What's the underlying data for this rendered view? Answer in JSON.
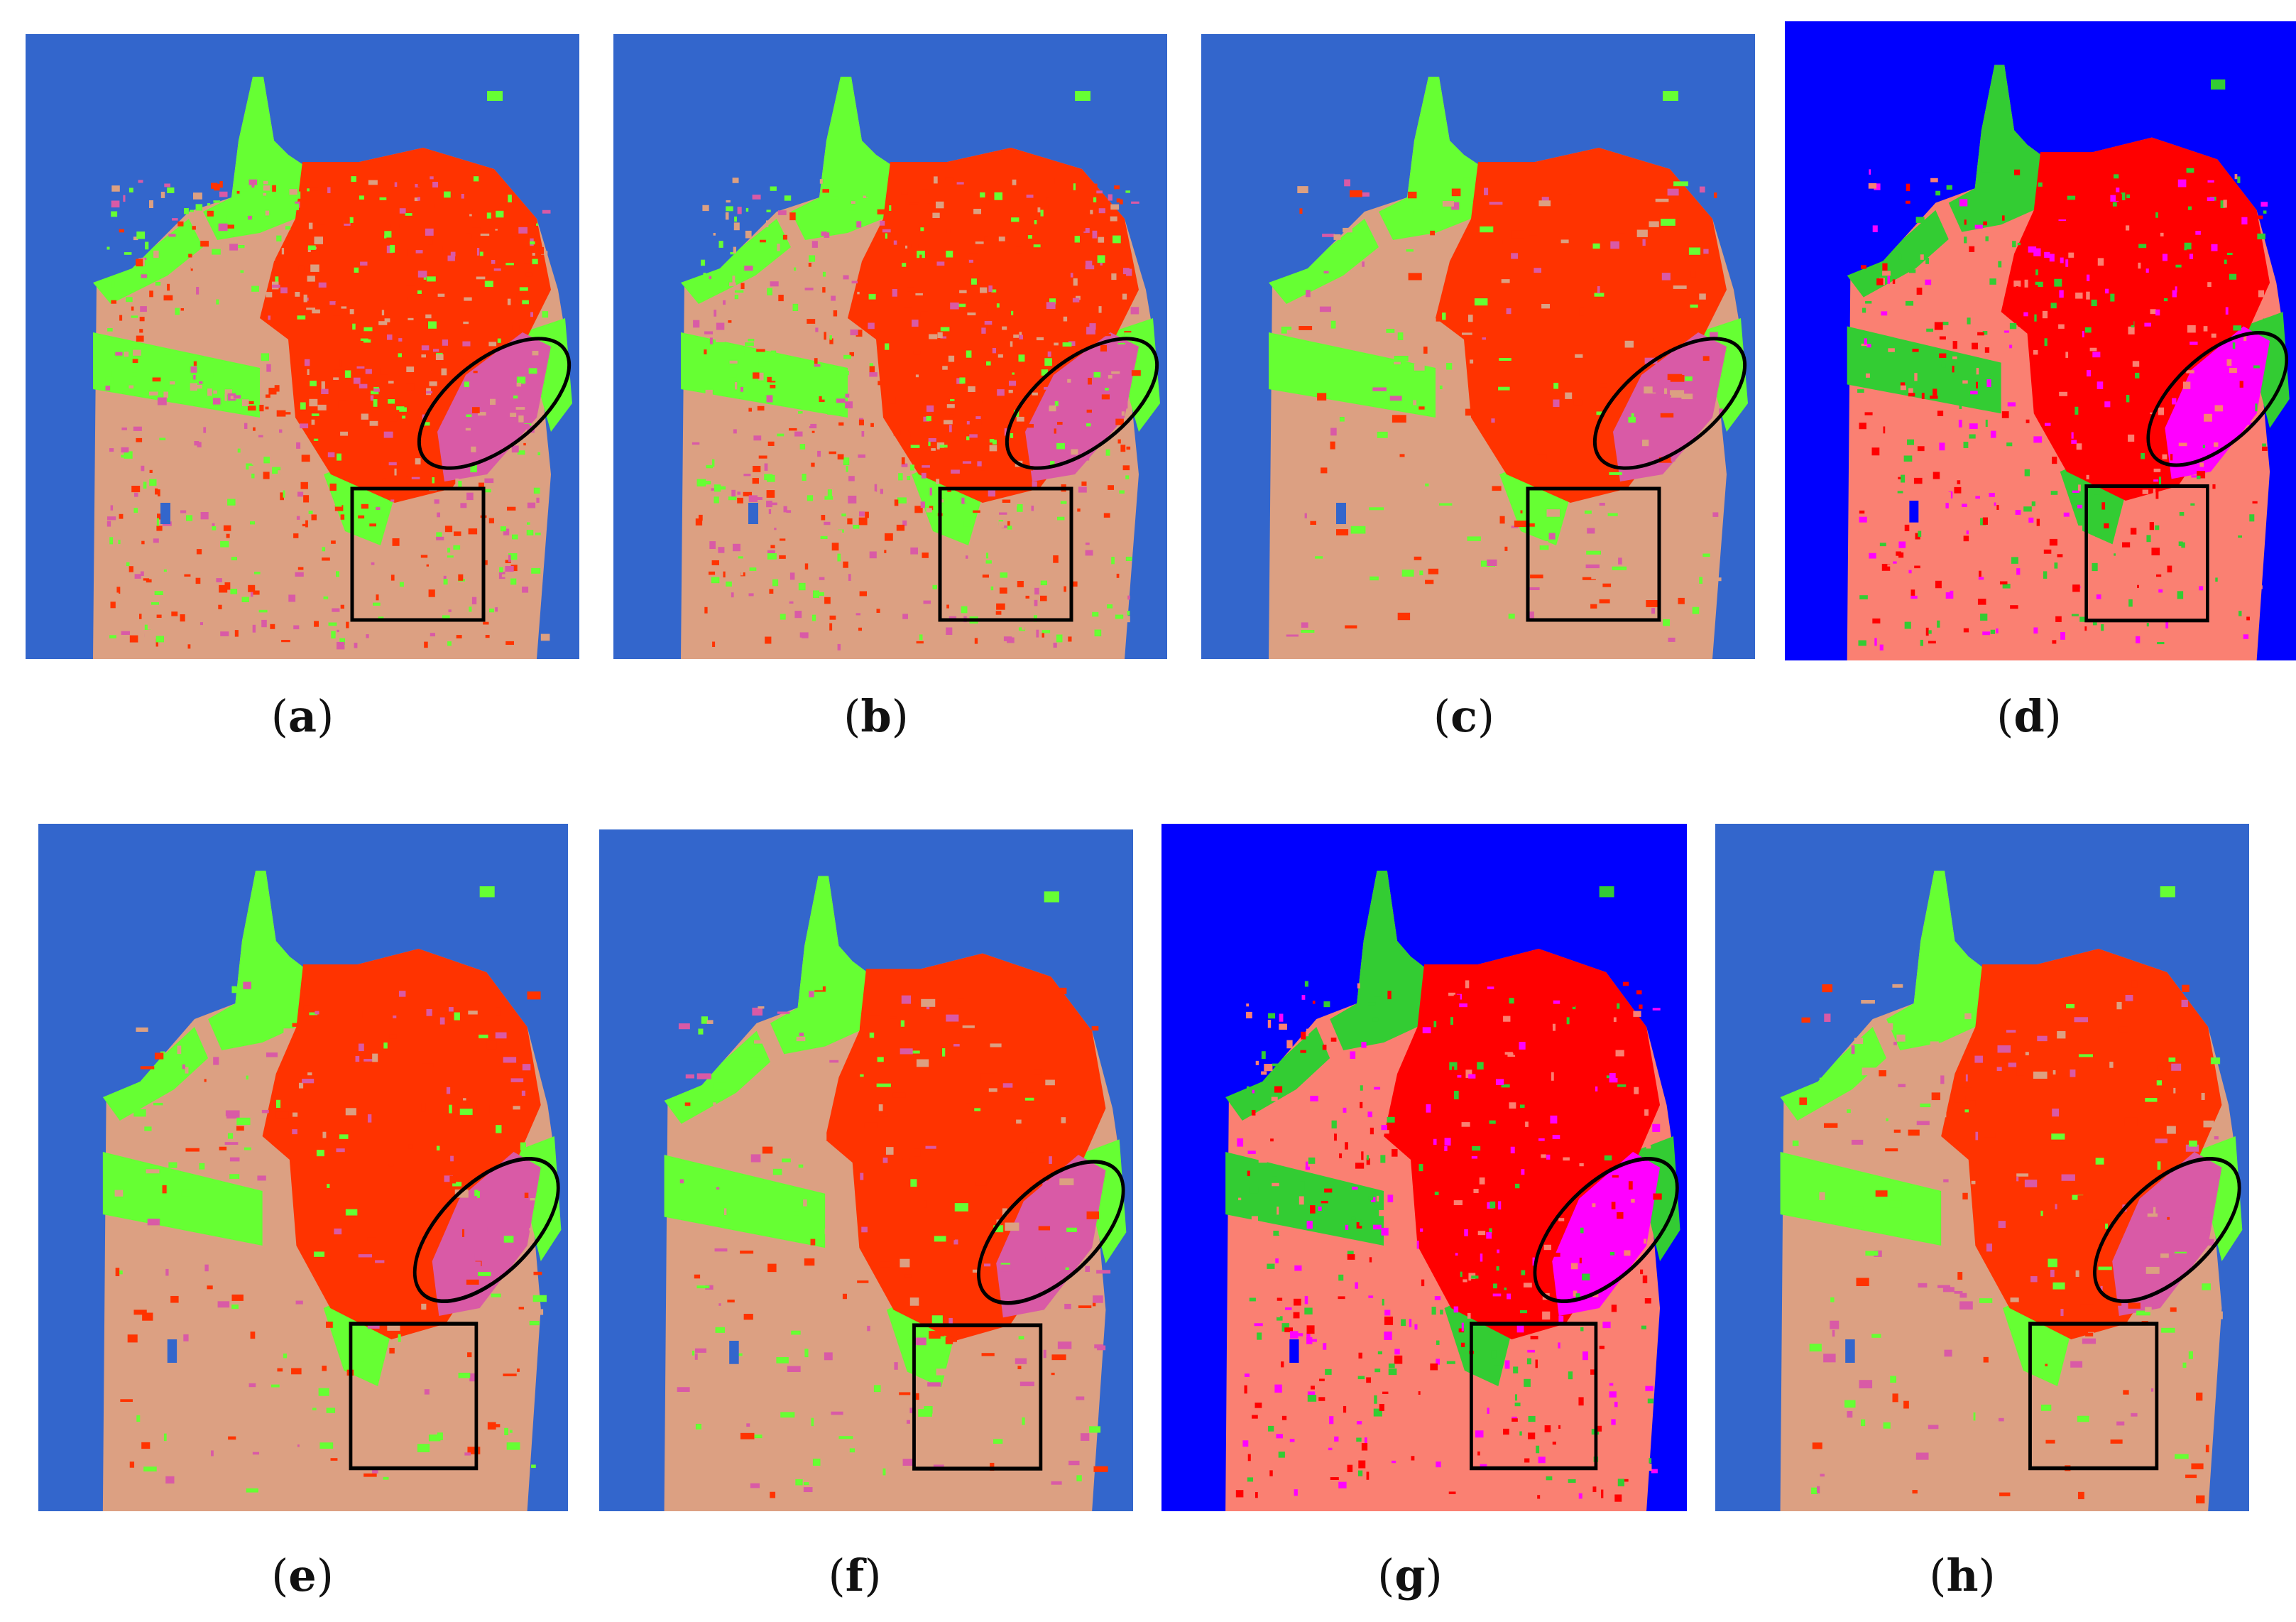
{
  "figure": {
    "panels": [
      {
        "id": "a",
        "label": "a",
        "style": "noisy-standard"
      },
      {
        "id": "b",
        "label": "b",
        "style": "noisy-standard"
      },
      {
        "id": "c",
        "label": "c",
        "style": "smooth-standard"
      },
      {
        "id": "d",
        "label": "d",
        "style": "bright"
      },
      {
        "id": "e",
        "label": "e",
        "style": "smooth-standard"
      },
      {
        "id": "f",
        "label": "f",
        "style": "smooth-standard"
      },
      {
        "id": "g",
        "label": "g",
        "style": "bright"
      },
      {
        "id": "h",
        "label": "h",
        "style": "smooth-standard"
      }
    ],
    "palettes": {
      "standard": {
        "water": "#3366cc",
        "vegetation": "#66ff33",
        "high_density_urban": "#ff3300",
        "low_density_urban": "#dca082",
        "developed": "#d95aa6"
      },
      "bright": {
        "water": "#0000ff",
        "vegetation": "#33cc33",
        "high_density_urban": "#ff0000",
        "low_density_urban": "#fa8072",
        "developed": "#ff00ff"
      },
      "annotation_stroke": "#000000"
    }
  }
}
